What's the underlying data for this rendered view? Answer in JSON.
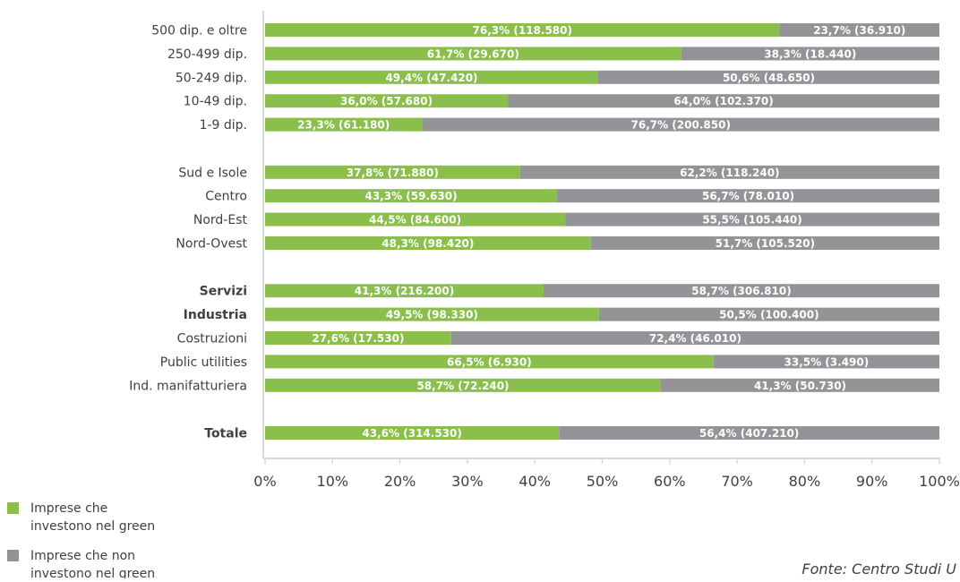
{
  "chart_data": {
    "type": "bar",
    "orientation": "horizontal",
    "stacked": true,
    "percent_stacked": true,
    "categories": [
      "500 dip. e oltre",
      "250-499 dip.",
      "50-249 dip.",
      "10-49 dip.",
      "1-9 dip.",
      "Sud e Isole",
      "Centro",
      "Nord-Est",
      "Nord-Ovest",
      "Servizi",
      "Industria",
      "Costruzioni",
      "Public utilities",
      "Ind. manifatturiera",
      "Totale"
    ],
    "bold_categories": [
      "Servizi",
      "Industria",
      "Totale"
    ],
    "groups": [
      [
        "500 dip. e oltre",
        "250-499 dip.",
        "50-249 dip.",
        "10-49 dip.",
        "1-9 dip."
      ],
      [
        "Sud e Isole",
        "Centro",
        "Nord-Est",
        "Nord-Ovest"
      ],
      [
        "Servizi",
        "Industria",
        "Costruzioni",
        "Public utilities",
        "Ind. manifatturiera"
      ],
      [
        "Totale"
      ]
    ],
    "series": [
      {
        "name": "Imprese che investono nel green",
        "color": "#8bbf4b",
        "values": [
          76.3,
          61.7,
          49.4,
          36.0,
          23.3,
          37.8,
          43.3,
          44.5,
          48.3,
          41.3,
          49.5,
          27.6,
          66.5,
          58.7,
          43.6
        ],
        "labels": [
          "76,3% (118.580)",
          "61,7% (29.670)",
          "49,4% (47.420)",
          "36,0% (57.680)",
          "23,3% (61.180)",
          "37,8% (71.880)",
          "43,3% (59.630)",
          "44,5% (84.600)",
          "48,3% (98.420)",
          "41,3% (216.200)",
          "49,5% (98.330)",
          "27,6% (17.530)",
          "66,5% (6.930)",
          "58,7% (72.240)",
          "43,6% (314.530)"
        ]
      },
      {
        "name": "Imprese che non investono nel green",
        "color": "#949398",
        "values": [
          23.7,
          38.3,
          50.6,
          64.0,
          76.7,
          62.2,
          56.7,
          55.5,
          51.7,
          58.7,
          50.5,
          72.4,
          33.5,
          41.3,
          56.4
        ],
        "labels": [
          "23,7% (36.910)",
          "38,3% (18.440)",
          "50,6% (48.650)",
          "64,0% (102.370)",
          "76,7% (200.850)",
          "62,2% (118.240)",
          "56,7% (78.010)",
          "55,5% (105.440)",
          "51,7% (105.520)",
          "58,7% (306.810)",
          "50,5% (100.400)",
          "72,4% (46.010)",
          "33,5% (3.490)",
          "41,3% (50.730)",
          "56,4% (407.210)"
        ]
      }
    ],
    "xlim": [
      0,
      100
    ],
    "xticks": [
      "0%",
      "10%",
      "20%",
      "30%",
      "40%",
      "50%",
      "60%",
      "70%",
      "80%",
      "90%",
      "100%"
    ],
    "grid": false,
    "legend": {
      "position": "bottom-left",
      "entries": [
        {
          "lines": [
            "Imprese che",
            "investono nel green"
          ],
          "color": "#8bbf4b"
        },
        {
          "lines": [
            "Imprese che non",
            "investono nel green"
          ],
          "color": "#949398"
        }
      ]
    },
    "source": "Fonte: Centro Studi U"
  }
}
